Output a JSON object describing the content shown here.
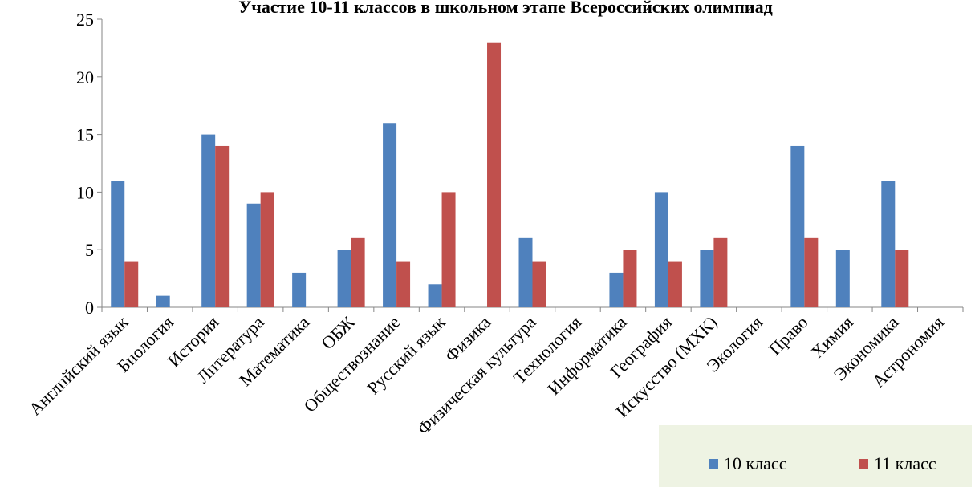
{
  "chart_data": {
    "type": "bar",
    "title": "Участие 10-11 классов в школьном этапе Всероссийских олимпиад",
    "categories": [
      "Английский язык",
      "Биология",
      "История",
      "Литература",
      "Математика",
      "ОБЖ",
      "Обществознание",
      "Русский язык",
      "Физика",
      "Физическая культура",
      "Технология",
      "Информатика",
      "География",
      "Искусство (МХК)",
      "Экология",
      "Право",
      "Химия",
      "Экономика",
      "Астрономия"
    ],
    "series": [
      {
        "name": "10 класс",
        "color": "#4F81BD",
        "values": [
          11,
          1,
          15,
          9,
          3,
          5,
          16,
          2,
          0,
          6,
          0,
          3,
          10,
          5,
          0,
          14,
          5,
          11,
          0
        ]
      },
      {
        "name": "11 класс",
        "color": "#C0504D",
        "values": [
          4,
          0,
          14,
          10,
          0,
          6,
          4,
          10,
          23,
          4,
          0,
          5,
          4,
          6,
          0,
          6,
          0,
          5,
          0
        ]
      }
    ],
    "y_ticks": [
      "0",
      "5",
      "10",
      "15",
      "20",
      "25"
    ],
    "ylim": [
      0,
      25
    ],
    "grid": false,
    "legend_position": "bottom-right",
    "legend_bg": "#EEF3E3"
  }
}
